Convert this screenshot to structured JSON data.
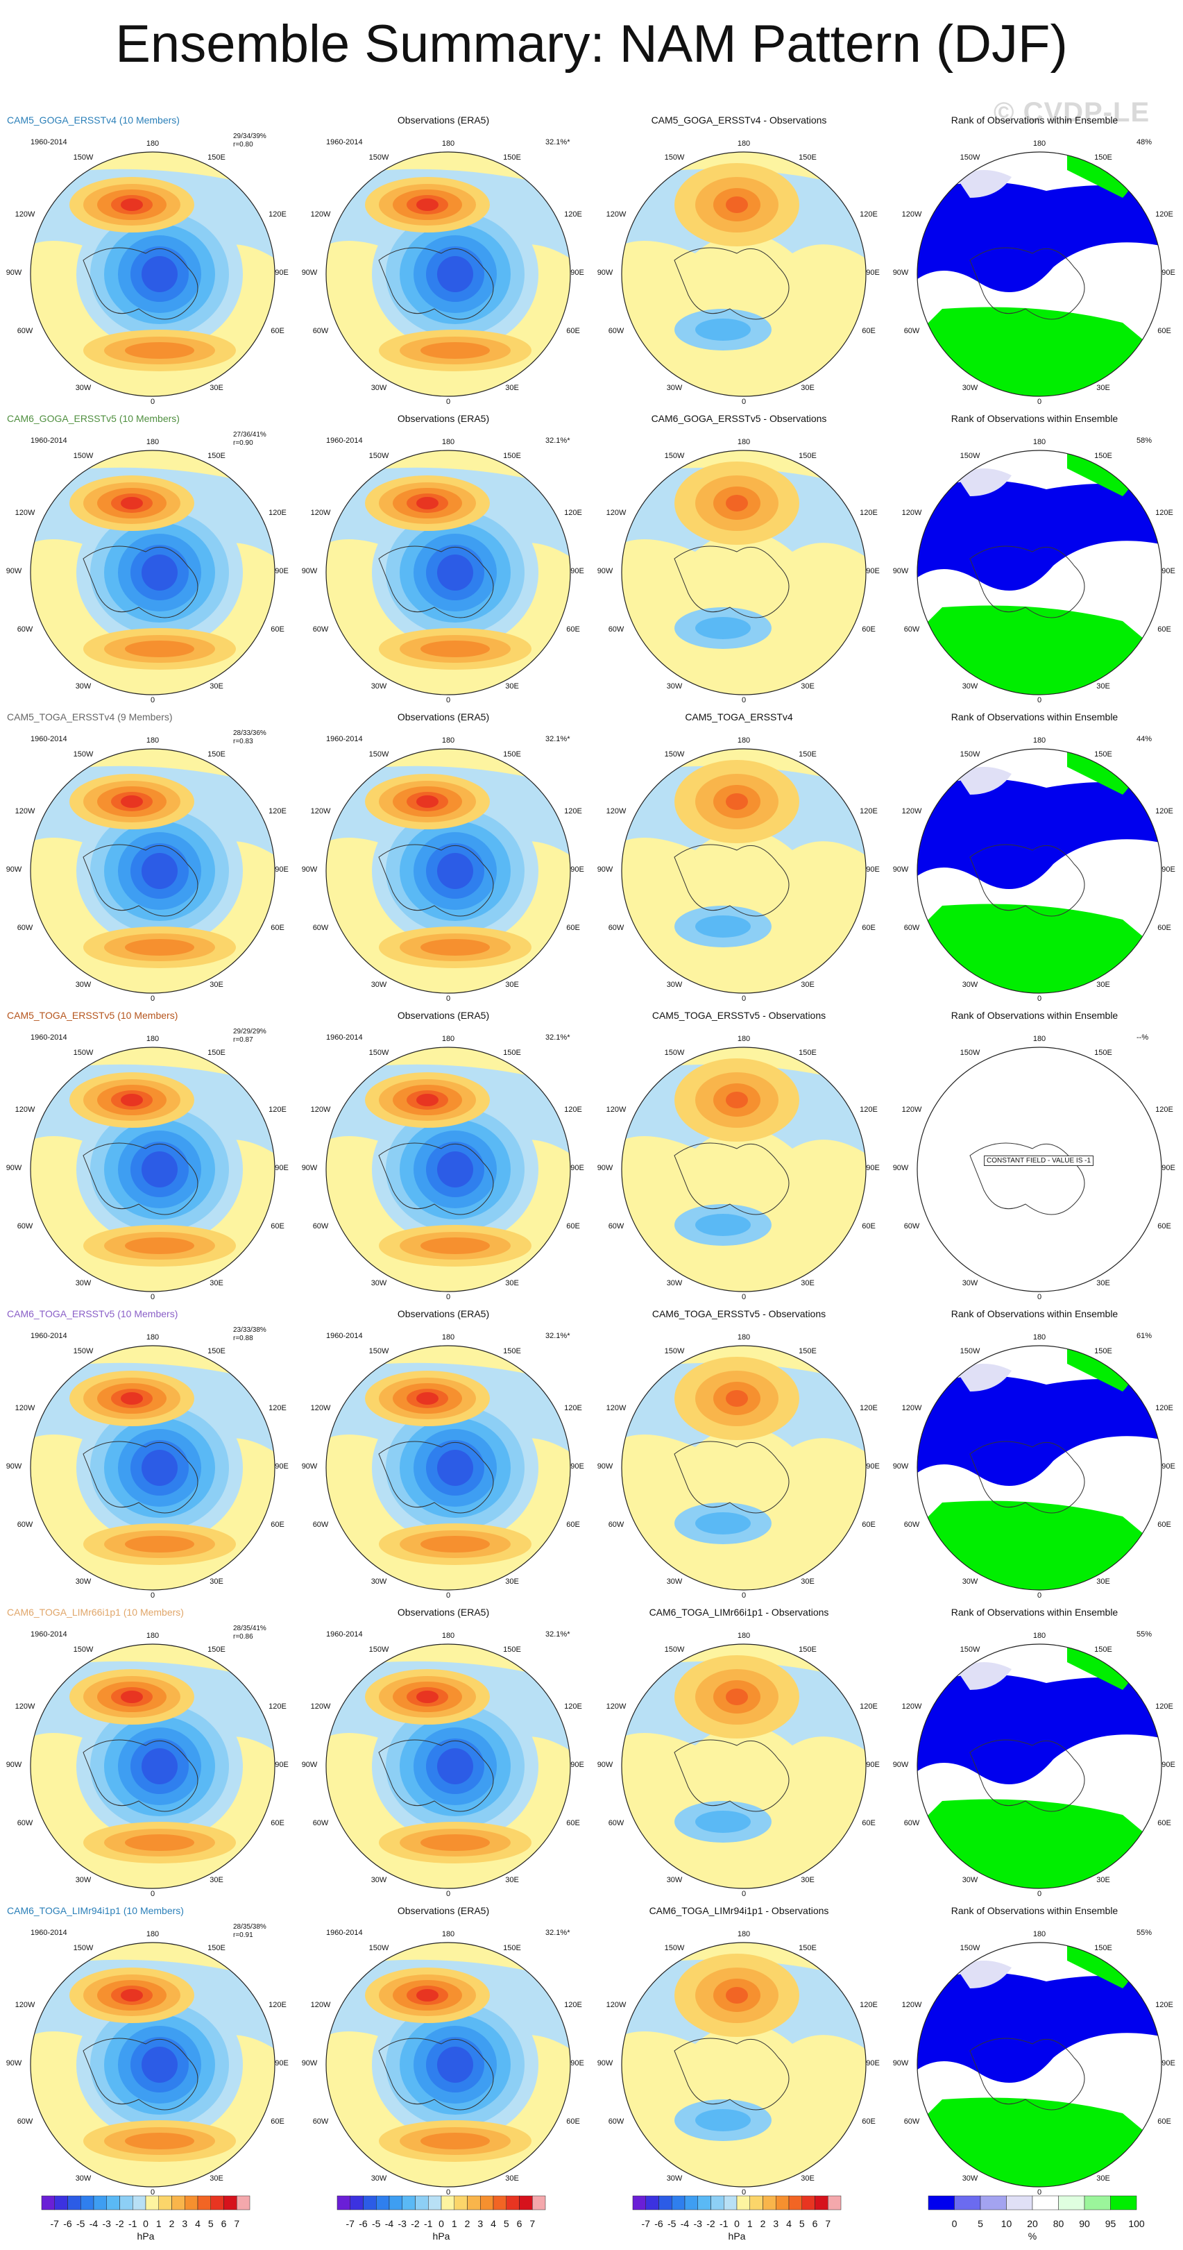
{
  "title": "Ensemble Summary: NAM Pattern (DJF)",
  "watermark": "© CVDP-LE",
  "lon_labels": {
    "top": "180",
    "tl": "150W",
    "tr": "150E",
    "lu": "120W",
    "ru": "120E",
    "l": "90W",
    "r": "90E",
    "ll": "60W",
    "rl": "60E",
    "bl": "30W",
    "br": "30E",
    "bottom": "0"
  },
  "obs_title": "Observations (ERA5)",
  "rank_title": "Rank of Observations within Ensemble",
  "period": "1960-2014",
  "obs_pct": "32.1%*",
  "constant_field": "CONSTANT FIELD - VALUE IS -1",
  "rows": [
    {
      "ensemble": "CAM5_GOGA_ERSSTv4 (10 Members)",
      "ens_color": "#2a7fb8",
      "stat1": "29/34/39%",
      "stat2": "r=0.80",
      "diff": "CAM5_GOGA_ERSSTv4 - Observations",
      "rank_pct": "48%"
    },
    {
      "ensemble": "CAM6_GOGA_ERSSTv5 (10 Members)",
      "ens_color": "#4f8f3f",
      "stat1": "27/36/41%",
      "stat2": "r=0.90",
      "diff": "CAM6_GOGA_ERSSTv5 - Observations",
      "rank_pct": "58%"
    },
    {
      "ensemble": "CAM5_TOGA_ERSSTv4 (9 Members)",
      "ens_color": "#666666",
      "stat1": "28/33/36%",
      "stat2": "r=0.83",
      "diff": "CAM5_TOGA_ERSSTv4",
      "rank_pct": "44%"
    },
    {
      "ensemble": "CAM5_TOGA_ERSSTv5 (10 Members)",
      "ens_color": "#b5541c",
      "stat1": "29/29/29%",
      "stat2": "r=0.87",
      "diff": "CAM5_TOGA_ERSSTv5 - Observations",
      "rank_pct": "--%"
    },
    {
      "ensemble": "CAM6_TOGA_ERSSTv5 (10 Members)",
      "ens_color": "#8a5fc7",
      "stat1": "23/33/38%",
      "stat2": "r=0.88",
      "diff": "CAM6_TOGA_ERSSTv5 - Observations",
      "rank_pct": "61%"
    },
    {
      "ensemble": "CAM6_TOGA_LIMr66i1p1 (10 Members)",
      "ens_color": "#e0a66a",
      "stat1": "28/35/41%",
      "stat2": "r=0.86",
      "diff": "CAM6_TOGA_LIMr66i1p1 - Observations",
      "rank_pct": "55%"
    },
    {
      "ensemble": "CAM6_TOGA_LIMr94i1p1 (10 Members)",
      "ens_color": "#2a7fb8",
      "stat1": "28/35/38%",
      "stat2": "r=0.91",
      "diff": "CAM6_TOGA_LIMr94i1p1 - Observations",
      "rank_pct": "55%"
    }
  ],
  "colorbar_hpa": {
    "ticks": [
      "-7",
      "-6",
      "-5",
      "-4",
      "-3",
      "-2",
      "-1",
      "0",
      "1",
      "2",
      "3",
      "4",
      "5",
      "6",
      "7"
    ],
    "unit": "hPa",
    "colors": [
      "#6a1fd6",
      "#3c32e0",
      "#2c5ce6",
      "#2f7fee",
      "#3e9ef2",
      "#5ab9f5",
      "#8dcff5",
      "#b8e0f5",
      "#fdf4a0",
      "#fbd56a",
      "#f9b54b",
      "#f6902f",
      "#f26524",
      "#e83521",
      "#d6121c",
      "#f4a8ac"
    ]
  },
  "colorbar_rank": {
    "ticks": [
      "0",
      "5",
      "10",
      "20",
      "80",
      "90",
      "95",
      "100"
    ],
    "unit": "%",
    "colors": [
      "#0000ee",
      "#6b6bf0",
      "#a3a3f0",
      "#e0e0f6",
      "#ffffff",
      "#dfffe0",
      "#9bf59b",
      "#00ee00"
    ]
  },
  "colors": {
    "ocean_pos": "#fdf4a0",
    "ocean_neg": "#b8e0f5",
    "land": "#333333"
  }
}
